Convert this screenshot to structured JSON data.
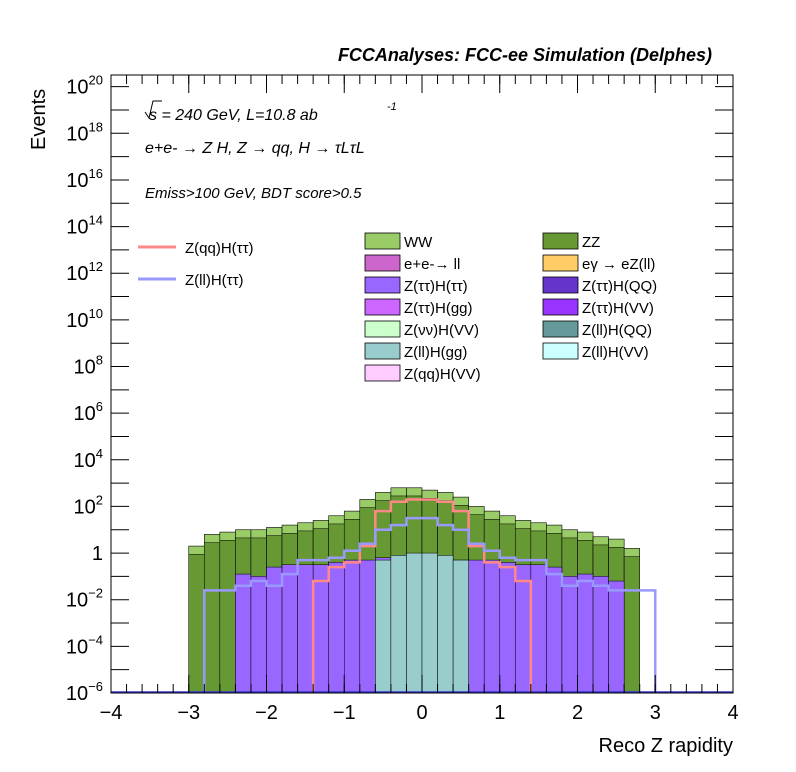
{
  "chart_data": {
    "type": "bar",
    "title": "FCCAnalyses: FCC-ee Simulation (Delphes)",
    "xlabel": "Reco Z rapidity",
    "ylabel": "Events",
    "xlim": [
      -4,
      4
    ],
    "ylim_log10": [
      -6,
      20.5
    ],
    "log_y": true,
    "x_ticks": [
      -4,
      -3,
      -2,
      -1,
      0,
      1,
      2,
      3,
      4
    ],
    "x_tick_labels": [
      "−4",
      "−3",
      "−2",
      "−1",
      "0",
      "1",
      "2",
      "3",
      "4"
    ],
    "y_tick_exponents": [
      -6,
      -4,
      -2,
      0,
      2,
      4,
      6,
      8,
      10,
      12,
      14,
      16,
      18,
      20
    ],
    "y_tick_plain": {
      "0": "1"
    },
    "annotations": {
      "energy_line": "s = 240 GeV, L=10.8 ab",
      "energy_sup": "-1",
      "process_line": "e+e- → Z H, Z → qq, H → τLτL",
      "selection_line": "Emiss>100 GeV, BDT score>0.5"
    },
    "bin_edges": [
      -4.0,
      -3.8,
      -3.6,
      -3.4,
      -3.2,
      -3.0,
      -2.8,
      -2.6,
      -2.4,
      -2.2,
      -2.0,
      -1.8,
      -1.6,
      -1.4,
      -1.2,
      -1.0,
      -0.8,
      -0.6,
      -0.4,
      -0.2,
      0.0,
      0.2,
      0.4,
      0.6,
      0.8,
      1.0,
      1.2,
      1.4,
      1.6,
      1.8,
      2.0,
      2.2,
      2.4,
      2.6,
      2.8,
      3.0,
      3.2,
      3.4,
      3.6,
      3.8,
      4.0
    ],
    "stack_totals_log10": [
      null,
      null,
      null,
      null,
      null,
      0.3,
      0.8,
      0.9,
      1.0,
      1.0,
      1.1,
      1.2,
      1.3,
      1.4,
      1.6,
      1.8,
      2.3,
      2.6,
      2.8,
      2.8,
      2.7,
      2.6,
      2.4,
      2.0,
      1.8,
      1.6,
      1.4,
      1.3,
      1.2,
      1.0,
      0.9,
      0.7,
      0.6,
      0.2,
      null,
      null,
      null,
      null,
      null,
      null
    ],
    "stack_layers": [
      {
        "name": "Z(ll)H(VV)",
        "legend_label": "Z(ll)H(VV)",
        "color": "#ccffff"
      },
      {
        "name": "Z(qq)H(VV)",
        "legend_label": "Z(qq)H(VV)",
        "color": "#ffccff"
      },
      {
        "name": "Z(ll)H(gg)",
        "legend_label": "Z(ll)H(gg)",
        "color": "#99cccc",
        "values_log10": [
          null,
          null,
          null,
          null,
          null,
          null,
          null,
          null,
          null,
          null,
          null,
          null,
          null,
          null,
          null,
          null,
          null,
          -0.3,
          -0.1,
          0.0,
          0.0,
          -0.1,
          -0.3,
          null,
          null,
          null,
          null,
          null,
          null,
          null,
          null,
          null,
          null,
          null,
          null,
          null,
          null,
          null,
          null,
          null
        ]
      },
      {
        "name": "Z(ll)H(QQ)",
        "legend_label": "Z(ll)H(QQ)",
        "color": "#669999"
      },
      {
        "name": "Z(νν)H(VV)",
        "legend_label": "Z(νν)H(VV)",
        "color": "#ccffcc"
      },
      {
        "name": "Z(ττ)H(VV)",
        "legend_label": "Z(ττ)H(VV)",
        "color": "#9933ff"
      },
      {
        "name": "Z(ττ)H(gg)",
        "legend_label": "Z(ττ)H(gg)",
        "color": "#cc66ff"
      },
      {
        "name": "Z(ττ)H(QQ)",
        "legend_label": "Z(ττ)H(QQ)",
        "color": "#6633cc"
      },
      {
        "name": "Z(ττ)H(ττ)",
        "legend_label": "Z(ττ)H(ττ)",
        "color": "#9966ff",
        "values_log10": [
          null,
          null,
          null,
          null,
          null,
          null,
          null,
          null,
          -0.9,
          -1.0,
          -0.6,
          -0.5,
          -0.5,
          -0.5,
          -0.4,
          -0.3,
          -0.3,
          -0.2,
          -0.2,
          -0.2,
          -0.2,
          -0.2,
          -0.3,
          -0.3,
          -0.3,
          -0.4,
          -0.5,
          -0.5,
          -0.6,
          -1.0,
          -0.9,
          -1.0,
          -1.2,
          null,
          null,
          null,
          null,
          null,
          null,
          null
        ]
      },
      {
        "name": "eγ → eZ(ll)",
        "legend_label": "eγ → eZ(ll)",
        "color": "#ffcc66"
      },
      {
        "name": "e+e-→ ll",
        "legend_label": "e+e-→ ll",
        "color": "#cc66cc"
      },
      {
        "name": "ZZ",
        "legend_label": "ZZ",
        "color": "#669933"
      },
      {
        "name": "WW",
        "legend_label": "WW",
        "color": "#99cc66"
      }
    ],
    "signals": [
      {
        "name": "Z(qq)H(ττ)",
        "legend_label": "Z(qq)H(ττ)",
        "color": "#ff8888",
        "values_log10": [
          null,
          null,
          null,
          null,
          null,
          null,
          null,
          null,
          null,
          null,
          null,
          null,
          null,
          -1.2,
          -0.6,
          -0.4,
          0.3,
          1.8,
          2.2,
          2.3,
          2.3,
          2.2,
          1.8,
          0.3,
          -0.4,
          -0.6,
          -1.2,
          null,
          null,
          null,
          null,
          null,
          null,
          null,
          null,
          null,
          null,
          null,
          null,
          null
        ]
      },
      {
        "name": "Z(ll)H(ττ)",
        "legend_label": "Z(ll)H(ττ)",
        "color": "#9999ff",
        "values_log10": [
          null,
          null,
          null,
          null,
          null,
          null,
          -1.6,
          -1.6,
          -1.4,
          -1.2,
          -1.4,
          -0.9,
          -0.3,
          -0.3,
          -0.2,
          0.1,
          0.4,
          1.0,
          1.2,
          1.5,
          1.5,
          1.2,
          1.0,
          0.4,
          0.1,
          -0.2,
          -0.3,
          -0.3,
          -0.9,
          -1.4,
          -1.2,
          -1.4,
          -1.6,
          -1.6,
          -1.6,
          null,
          null,
          null,
          null,
          null
        ]
      }
    ],
    "legend_left": [
      "Z(qq)H(ττ)",
      "Z(ll)H(ττ)"
    ],
    "legend_col1": [
      "WW",
      "e+e-→ ll",
      "Z(ττ)H(ττ)",
      "Z(ττ)H(gg)",
      "Z(νν)H(VV)",
      "Z(ll)H(gg)",
      "Z(qq)H(VV)"
    ],
    "legend_col2": [
      "ZZ",
      "eγ → eZ(ll)",
      "Z(ττ)H(QQ)",
      "Z(ττ)H(VV)",
      "Z(ll)H(QQ)",
      "Z(ll)H(VV)"
    ]
  }
}
